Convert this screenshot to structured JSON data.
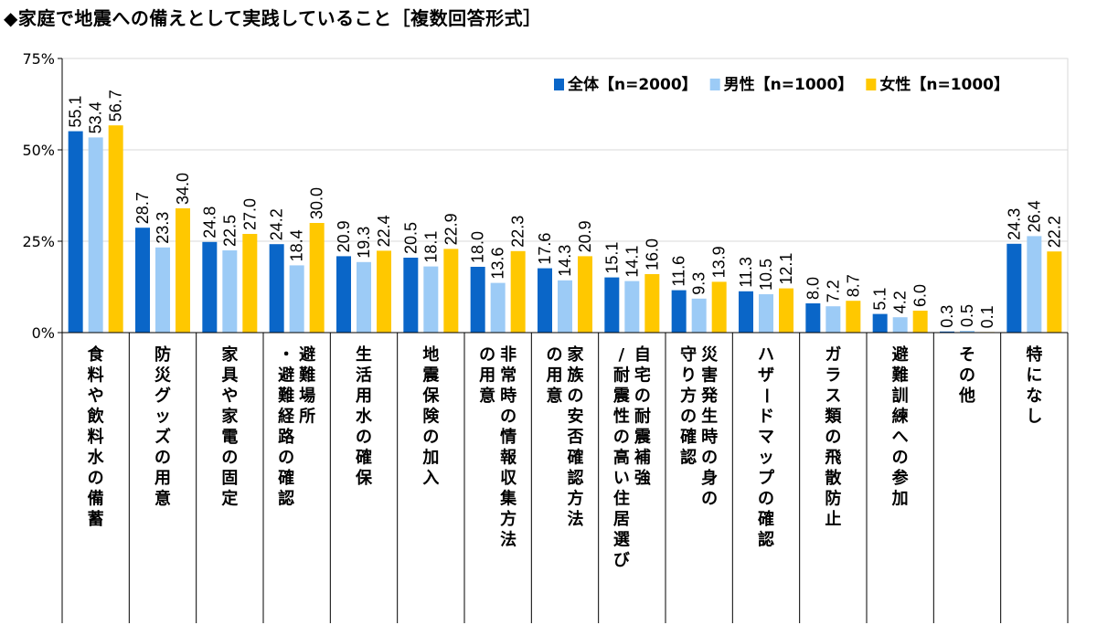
{
  "title": "◆家庭で地震への備えとして実践していること［複数回答形式］",
  "colors": {
    "total": "#0a66c8",
    "male": "#9ccbf6",
    "female": "#ffc800",
    "grid": "#d9d9d9",
    "axis": "#000000"
  },
  "chart_data": {
    "type": "bar",
    "title": "◆家庭で地震への備えとして実践していること［複数回答形式］",
    "xlabel": "",
    "ylabel": "",
    "ylim": [
      0,
      75
    ],
    "y_ticks": [
      "0%",
      "25%",
      "50%",
      "75%"
    ],
    "y_tick_values": [
      0,
      25,
      50,
      75
    ],
    "grid": true,
    "legend_position": "top-right",
    "categories": [
      [
        "食料や飲料水の備蓄"
      ],
      [
        "防災グッズの用意"
      ],
      [
        "家具や家電の固定"
      ],
      [
        "避難場所",
        "・避難経路の確認"
      ],
      [
        "生活用水の確保"
      ],
      [
        "地震保険の加入"
      ],
      [
        "非常時の情報収集方法",
        "の用意"
      ],
      [
        "家族の安否確認方法",
        "の用意"
      ],
      [
        "自宅の耐震補強",
        "/耐震性の高い住居選び"
      ],
      [
        "災害発生時の身の",
        "守り方の確認"
      ],
      [
        "ハザードマップの確認"
      ],
      [
        "ガラス類の飛散防止"
      ],
      [
        "避難訓練への参加"
      ],
      [
        "その他"
      ],
      [
        "特になし"
      ]
    ],
    "series": [
      {
        "name": "全体【n=2000】",
        "key": "total",
        "values": [
          55.1,
          28.7,
          24.8,
          24.2,
          20.9,
          20.5,
          18.0,
          17.6,
          15.1,
          11.6,
          11.3,
          8.0,
          5.1,
          0.3,
          24.3
        ],
        "labels": [
          "55.1",
          "28.7",
          "24.8",
          "24.2",
          "20.9",
          "20.5",
          "18.0",
          "17.6",
          "15.1",
          "11.6",
          "11.3",
          "8.0",
          "5.1",
          "0.3",
          "24.3"
        ]
      },
      {
        "name": "男性【n=1000】",
        "key": "male",
        "values": [
          53.4,
          23.3,
          22.5,
          18.4,
          19.3,
          18.1,
          13.6,
          14.3,
          14.1,
          9.3,
          10.5,
          7.2,
          4.2,
          0.5,
          26.4
        ],
        "labels": [
          "53.4",
          "23.3",
          "22.5",
          "18.4",
          "19.3",
          "18.1",
          "13.6",
          "14.3",
          "14.1",
          "9.3",
          "10.5",
          "7.2",
          "4.2",
          "0.5",
          "26.4"
        ]
      },
      {
        "name": "女性【n=1000】",
        "key": "female",
        "values": [
          56.7,
          34.0,
          27.0,
          30.0,
          22.4,
          22.9,
          22.3,
          20.9,
          16.0,
          13.9,
          12.1,
          8.7,
          6.0,
          0.1,
          22.2
        ],
        "labels": [
          "56.7",
          "34.0",
          "27.0",
          "30.0",
          "22.4",
          "22.9",
          "22.3",
          "20.9",
          "16.0",
          "13.9",
          "12.1",
          "8.7",
          "6.0",
          "0.1",
          "22.2"
        ]
      }
    ]
  }
}
